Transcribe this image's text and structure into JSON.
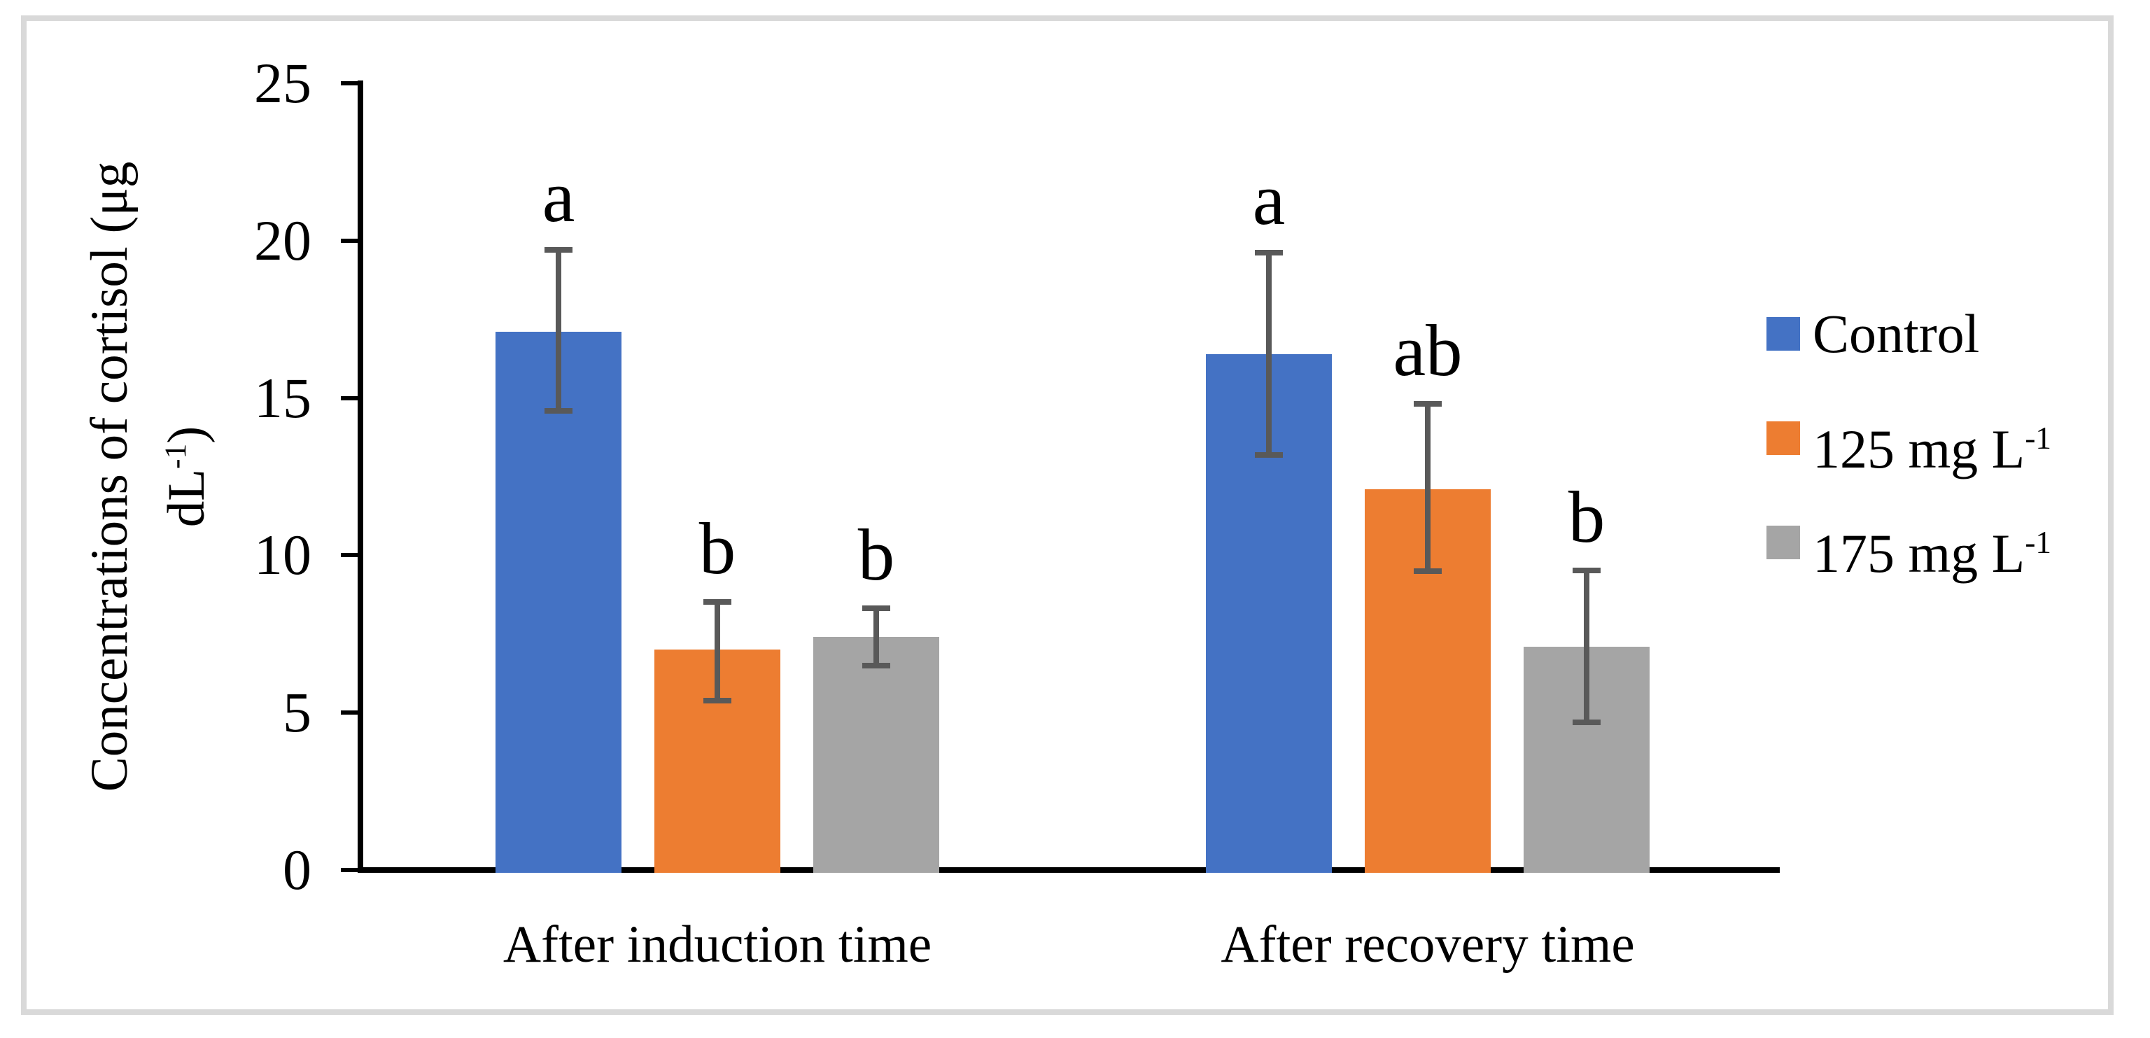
{
  "figure": {
    "background": "#FFFFFF",
    "border_color": "#D9D9D9"
  },
  "chart_data": {
    "type": "bar",
    "title": "",
    "xlabel": "",
    "ylabel": "Concentrations of cortisol (μg dL⁻¹)",
    "ylabel_lines": [
      {
        "base": "Concentrations of cortisol (μg",
        "sup": "",
        "tail": ""
      },
      {
        "base": "dL",
        "sup": "-1",
        "tail": ")"
      }
    ],
    "ylim": [
      0,
      25
    ],
    "yticks": [
      0,
      5,
      10,
      15,
      20,
      25
    ],
    "grid": false,
    "legend_position": "right",
    "categories": [
      "After induction time",
      "After recovery time"
    ],
    "series": [
      {
        "name": "Control",
        "label_base": "Control",
        "label_sup": "",
        "color": "#4472C4",
        "values": [
          17.1,
          16.4
        ],
        "err_high": [
          19.8,
          19.7
        ],
        "err_low": [
          14.5,
          13.1
        ],
        "sig_letters": [
          "a",
          "a"
        ]
      },
      {
        "name": "125 mg L-1",
        "label_base": "125 mg L",
        "label_sup": "-1",
        "color": "#ED7D31",
        "values": [
          7.0,
          12.1
        ],
        "err_high": [
          8.6,
          14.9
        ],
        "err_low": [
          5.3,
          9.4
        ],
        "sig_letters": [
          "b",
          "ab"
        ]
      },
      {
        "name": "175 mg L-1",
        "label_base": "175 mg L",
        "label_sup": "-1",
        "color": "#A5A5A5",
        "values": [
          7.4,
          7.1
        ],
        "err_high": [
          8.4,
          9.6
        ],
        "err_low": [
          6.4,
          4.6
        ],
        "sig_letters": [
          "b",
          "b"
        ]
      }
    ],
    "error_bar_color": "#595959",
    "axis_color": "#000000"
  }
}
